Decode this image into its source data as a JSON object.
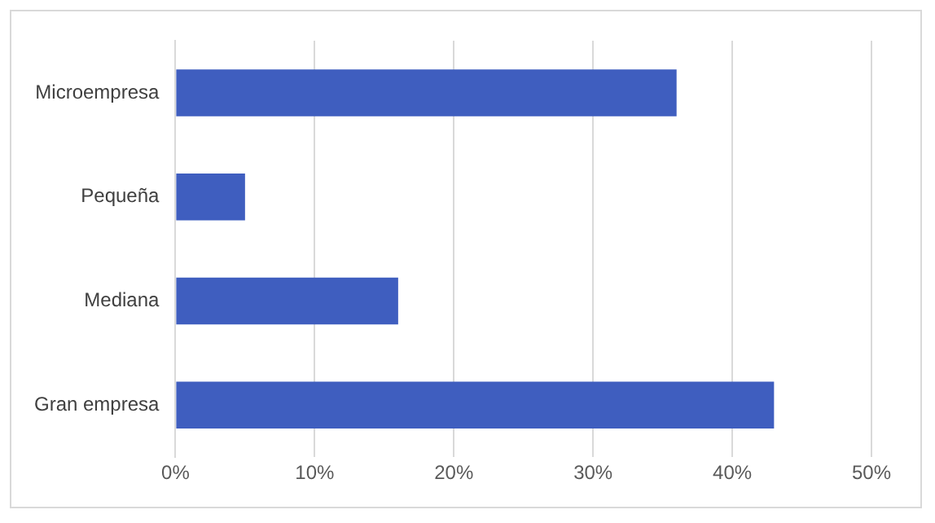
{
  "chart_data": {
    "type": "bar",
    "orientation": "horizontal",
    "categories": [
      "Microempresa",
      "Pequeña",
      "Mediana",
      "Gran empresa"
    ],
    "values": [
      36,
      5,
      16,
      43
    ],
    "color": "#3f5ebf",
    "xlim": [
      0,
      50
    ],
    "xticks": [
      {
        "value": 0,
        "label": "0%"
      },
      {
        "value": 10,
        "label": "10%"
      },
      {
        "value": 20,
        "label": "20%"
      },
      {
        "value": 30,
        "label": "30%"
      },
      {
        "value": 40,
        "label": "40%"
      },
      {
        "value": 50,
        "label": "50%"
      }
    ],
    "grid": "x",
    "legend": false
  }
}
